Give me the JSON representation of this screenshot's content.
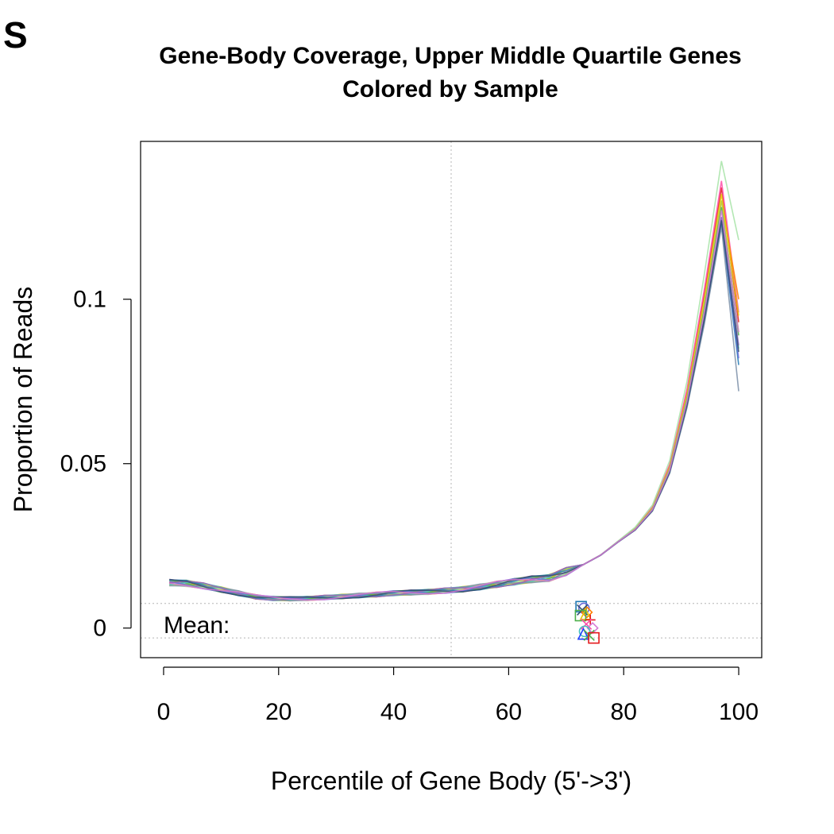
{
  "panel_label": "S",
  "chart_data": {
    "type": "line",
    "title": "Gene-Body Coverage, Upper Middle Quartile Genes",
    "subtitle": "Colored by Sample",
    "xlabel": "Percentile of Gene Body (5'->3')",
    "ylabel": "Proportion of Reads",
    "xlim": [
      -4,
      104
    ],
    "ylim": [
      -0.009,
      0.148
    ],
    "xticks": [
      0,
      20,
      40,
      60,
      80,
      100
    ],
    "xtick_labels": [
      "0",
      "20",
      "40",
      "60",
      "80",
      "100"
    ],
    "yticks": [
      0,
      0.05,
      0.1
    ],
    "ytick_labels": [
      "0",
      "0.05",
      "0.1"
    ],
    "grid": false,
    "reference_lines": {
      "vertical_x": 50,
      "horizontal_y": [
        0.0075,
        -0.003
      ]
    },
    "mean_label": "Mean:",
    "x": [
      1,
      4,
      7,
      10,
      13,
      16,
      19,
      22,
      25,
      28,
      31,
      34,
      37,
      40,
      43,
      46,
      49,
      52,
      55,
      58,
      61,
      64,
      67,
      70,
      73,
      76,
      79,
      82,
      85,
      88,
      91,
      94,
      97,
      100
    ],
    "series_base": [
      0.0138,
      0.0136,
      0.0128,
      0.0117,
      0.0106,
      0.0095,
      0.009,
      0.0089,
      0.009,
      0.0093,
      0.0096,
      0.0099,
      0.0102,
      0.0106,
      0.0108,
      0.011,
      0.0114,
      0.0118,
      0.0125,
      0.0133,
      0.0141,
      0.0148,
      0.0152,
      0.0172,
      0.0193,
      0.0222,
      0.0262,
      0.03,
      0.036,
      0.048,
      0.069,
      0.096,
      0.127,
      0.088
    ],
    "series": [
      {
        "color": "#e41a1c",
        "peak": 0.134,
        "end": 0.093
      },
      {
        "color": "#ff4fa8",
        "peak": 0.136,
        "end": 0.096
      },
      {
        "color": "#ff7f00",
        "peak": 0.13,
        "end": 0.1
      },
      {
        "color": "#e6c800",
        "peak": 0.132,
        "end": 0.095
      },
      {
        "color": "#b8d44a",
        "peak": 0.13,
        "end": 0.09
      },
      {
        "color": "#4daf4a",
        "peak": 0.128,
        "end": 0.089
      },
      {
        "color": "#a6e3a6",
        "peak": 0.142,
        "end": 0.118
      },
      {
        "color": "#44c0c0",
        "peak": 0.125,
        "end": 0.085
      },
      {
        "color": "#1f78b4",
        "peak": 0.123,
        "end": 0.08
      },
      {
        "color": "#6a6ad8",
        "peak": 0.124,
        "end": 0.082
      },
      {
        "color": "#7b8fa8",
        "peak": 0.122,
        "end": 0.072
      },
      {
        "color": "#9467bd",
        "peak": 0.125,
        "end": 0.086
      },
      {
        "color": "#2f4f6f",
        "peak": 0.124,
        "end": 0.084
      },
      {
        "color": "#d67ad6",
        "peak": 0.127,
        "end": 0.09
      }
    ],
    "mean_markers": [
      {
        "x": 72.6,
        "y": 0.0065,
        "shape": "square",
        "color": "#1f78b4"
      },
      {
        "x": 73.1,
        "y": 0.006,
        "shape": "circle",
        "color": "#6a6ad8"
      },
      {
        "x": 72.8,
        "y": 0.0055,
        "shape": "x",
        "color": "#2f4f6f"
      },
      {
        "x": 73.6,
        "y": 0.0048,
        "shape": "diamond",
        "color": "#ff7f00"
      },
      {
        "x": 73.4,
        "y": 0.0042,
        "shape": "triangle",
        "color": "#e6c800"
      },
      {
        "x": 72.5,
        "y": 0.0038,
        "shape": "square",
        "color": "#4daf4a"
      },
      {
        "x": 74.2,
        "y": 0.0025,
        "shape": "plus",
        "color": "#e41a1c"
      },
      {
        "x": 73.5,
        "y": 0.0012,
        "shape": "x",
        "color": "#ff4fa8"
      },
      {
        "x": 74.6,
        "y": 0.0,
        "shape": "diamond",
        "color": "#d67ad6"
      },
      {
        "x": 73.2,
        "y": -0.001,
        "shape": "circle",
        "color": "#44c0c0"
      },
      {
        "x": 73.0,
        "y": -0.0018,
        "shape": "triangle",
        "color": "#1f3fff"
      },
      {
        "x": 74.0,
        "y": -0.0022,
        "shape": "x",
        "color": "#4daf4a"
      },
      {
        "x": 74.8,
        "y": -0.003,
        "shape": "square",
        "color": "#e41a1c"
      }
    ]
  }
}
